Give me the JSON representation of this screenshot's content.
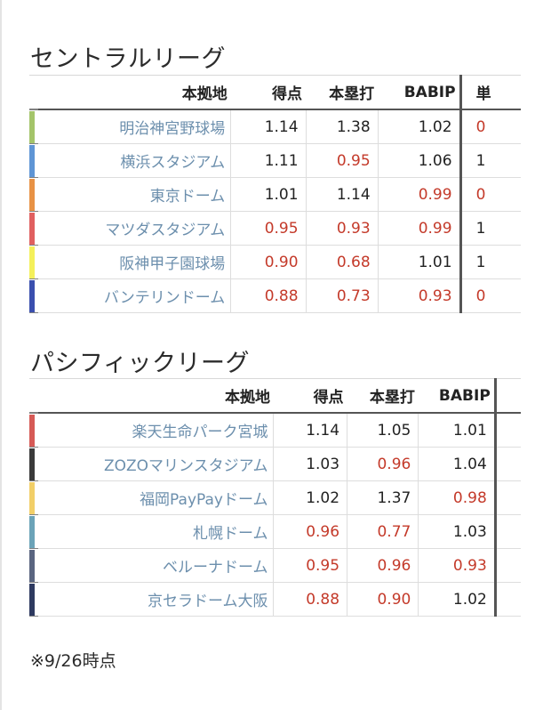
{
  "central": {
    "title": "セントラルリーグ",
    "headers": [
      "本拠地",
      "得点",
      "本塁打",
      "BABIP",
      "単"
    ],
    "rows": [
      {
        "venue": "明治神宮野球場",
        "color": "#a4c46a",
        "vals": [
          "1.14",
          "1.38",
          "1.02",
          "0"
        ],
        "red": [
          false,
          false,
          false,
          true
        ]
      },
      {
        "venue": "横浜スタジアム",
        "color": "#5f95d5",
        "vals": [
          "1.11",
          "0.95",
          "1.06",
          "1"
        ],
        "red": [
          false,
          true,
          false,
          false
        ]
      },
      {
        "venue": "東京ドーム",
        "color": "#e89245",
        "vals": [
          "1.01",
          "1.14",
          "0.99",
          "0"
        ],
        "red": [
          false,
          false,
          true,
          true
        ]
      },
      {
        "venue": "マツダスタジアム",
        "color": "#e06060",
        "vals": [
          "0.95",
          "0.93",
          "0.99",
          "1"
        ],
        "red": [
          true,
          true,
          true,
          false
        ]
      },
      {
        "venue": "阪神甲子園球場",
        "color": "#f4f05a",
        "vals": [
          "0.90",
          "0.68",
          "1.01",
          "1"
        ],
        "red": [
          true,
          true,
          false,
          false
        ]
      },
      {
        "venue": "バンテリンドーム",
        "color": "#3a4fae",
        "vals": [
          "0.88",
          "0.73",
          "0.93",
          "0"
        ],
        "red": [
          true,
          true,
          true,
          true
        ]
      }
    ]
  },
  "pacific": {
    "title": "パシフィックリーグ",
    "headers": [
      "本拠地",
      "得点",
      "本塁打",
      "BABIP"
    ],
    "rows": [
      {
        "venue": "楽天生命パーク宮城",
        "color": "#d65a56",
        "vals": [
          "1.14",
          "1.05",
          "1.01"
        ],
        "red": [
          false,
          false,
          false
        ]
      },
      {
        "venue": "ZOZOマリンスタジアム",
        "color": "#3a3a3a",
        "vals": [
          "1.03",
          "0.96",
          "1.04"
        ],
        "red": [
          false,
          true,
          false
        ]
      },
      {
        "venue": "福岡PayPayドーム",
        "color": "#f2cf68",
        "vals": [
          "1.02",
          "1.37",
          "0.98"
        ],
        "red": [
          false,
          false,
          true
        ]
      },
      {
        "venue": "札幌ドーム",
        "color": "#6ba3b8",
        "vals": [
          "0.96",
          "0.77",
          "1.03"
        ],
        "red": [
          true,
          true,
          false
        ]
      },
      {
        "venue": "ベルーナドーム",
        "color": "#5a6580",
        "vals": [
          "0.95",
          "0.96",
          "0.93"
        ],
        "red": [
          true,
          true,
          true
        ]
      },
      {
        "venue": "京セラドーム大阪",
        "color": "#2e3a60",
        "vals": [
          "0.88",
          "0.90",
          "1.02"
        ],
        "red": [
          true,
          true,
          false
        ]
      }
    ]
  },
  "note": "※9/26時点"
}
